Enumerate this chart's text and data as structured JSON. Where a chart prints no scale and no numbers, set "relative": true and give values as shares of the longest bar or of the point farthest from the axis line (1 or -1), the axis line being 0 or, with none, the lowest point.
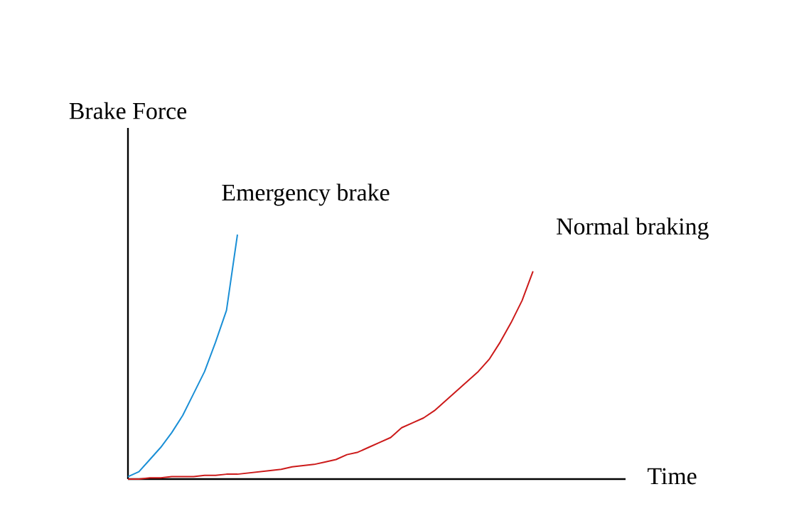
{
  "chart_data": {
    "type": "line",
    "relative": true,
    "xlabel": "Time",
    "ylabel": "Brake Force",
    "categories": [
      null,
      null,
      null,
      null,
      null,
      null,
      null,
      null,
      null,
      null,
      null,
      null,
      null,
      null,
      null,
      null,
      null,
      null,
      null,
      null,
      null,
      null,
      null,
      null,
      null,
      null,
      null,
      null,
      null,
      null,
      null,
      null,
      null,
      null,
      null,
      null,
      null,
      null,
      null,
      null,
      null,
      null,
      null,
      null,
      null,
      null
    ],
    "series": [
      {
        "name": "Emergency brake",
        "color": "#1a8fd6",
        "values": [
          0.01,
          0.03,
          0.08,
          0.13,
          0.19,
          0.26,
          0.35,
          0.44,
          0.56,
          0.69,
          1,
          null,
          null,
          null,
          null,
          null,
          null,
          null,
          null,
          null,
          null,
          null,
          null,
          null,
          null,
          null,
          null,
          null,
          null,
          null,
          null,
          null,
          null,
          null,
          null,
          null,
          null,
          null,
          null,
          null,
          null,
          null,
          null,
          null,
          null,
          null
        ]
      },
      {
        "name": "Normal braking",
        "color": "#cc1a1a",
        "values": [
          0,
          0,
          0.005,
          0.005,
          0.01,
          0.01,
          0.01,
          0.015,
          0.015,
          0.02,
          0.02,
          0.025,
          0.03,
          0.035,
          0.04,
          0.05,
          0.055,
          0.06,
          0.07,
          0.08,
          0.1,
          0.11,
          0.13,
          0.15,
          0.17,
          0.21,
          0.23,
          0.25,
          0.28,
          0.32,
          0.36,
          0.4,
          0.44,
          0.49,
          0.56,
          0.64,
          0.73,
          0.85,
          null,
          null,
          null,
          null,
          null,
          null,
          null,
          null
        ]
      }
    ],
    "legend": false,
    "marker": "none",
    "line_style": "solid"
  }
}
